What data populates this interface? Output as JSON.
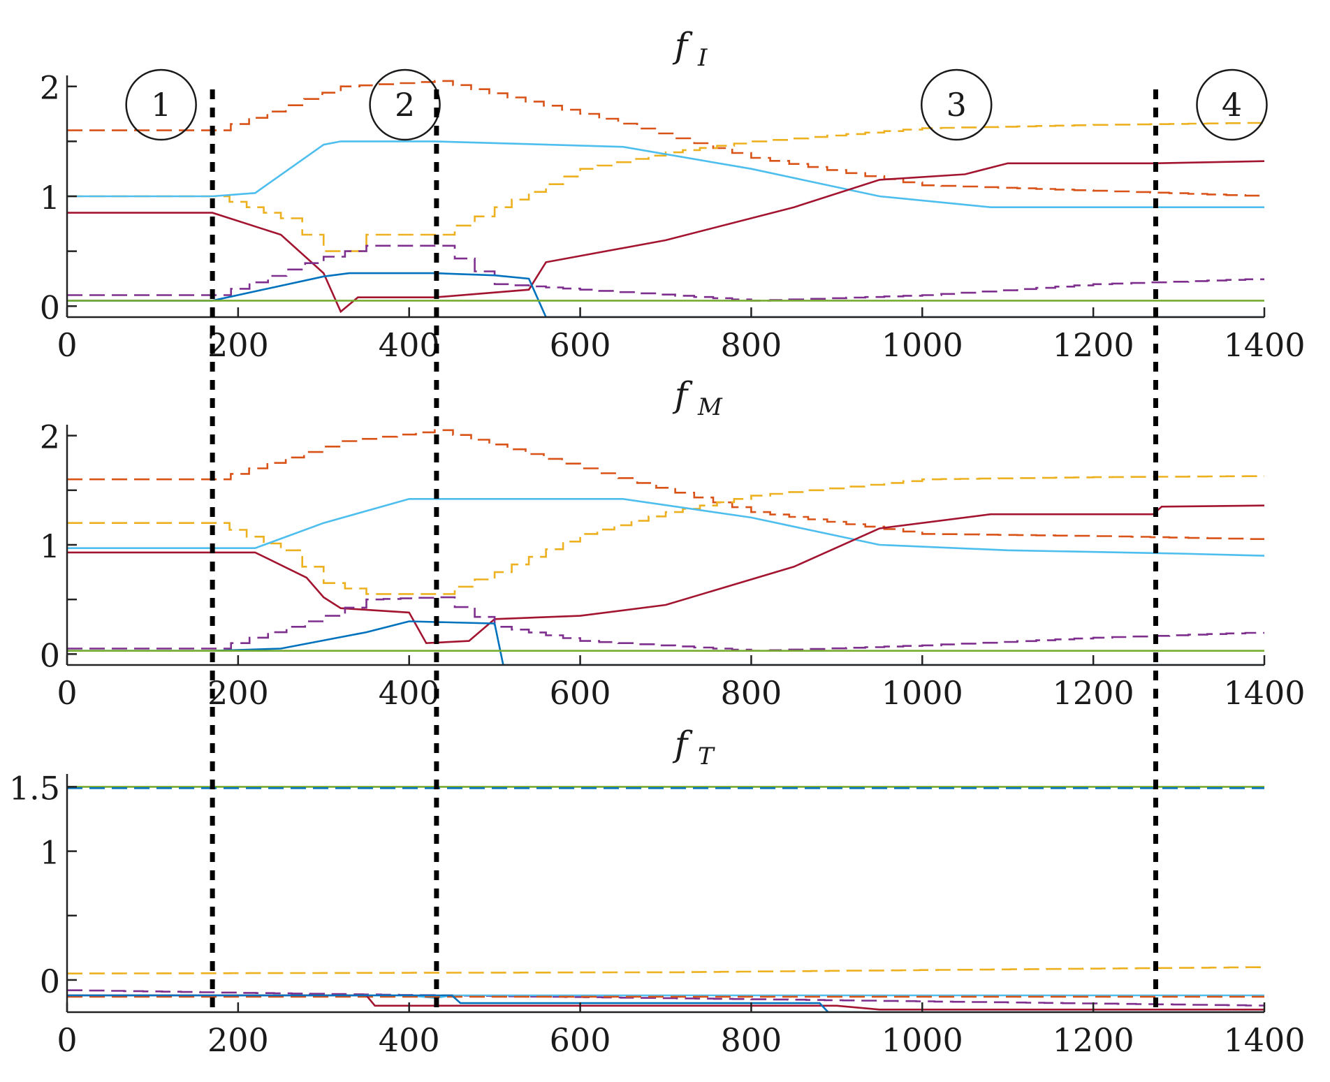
{
  "colors": {
    "blue": "#0072BD",
    "orange": "#D95319",
    "yellow": "#EDB120",
    "purple": "#7E2F8E",
    "green": "#77AC30",
    "cyan": "#4DBEEE",
    "maroon": "#A2142F",
    "axis": "#222222",
    "divider": "#000000"
  },
  "regions": {
    "labels": [
      "1",
      "2",
      "3",
      "4"
    ],
    "label_x": [
      110,
      395,
      1040,
      1362
    ],
    "dividers_x": [
      170,
      432,
      1273
    ]
  },
  "chart_data": [
    {
      "type": "line",
      "title": "f",
      "subscript": "I",
      "xlabel": "",
      "ylabel": "",
      "xlim": [
        0,
        1400
      ],
      "ylim": [
        -0.1,
        2.1
      ],
      "xticks": [
        0,
        200,
        400,
        600,
        800,
        1000,
        1200,
        1400
      ],
      "yticks_labeled": [
        0,
        1,
        2
      ],
      "yticks_minor": [
        0.5,
        1.5
      ],
      "region_labels_shown": true,
      "series": [
        {
          "name": "series-orange-dashed",
          "color": "orange",
          "dashed": true,
          "stepped": true,
          "x": [
            0,
            170,
            320,
            430,
            600,
            800,
            1000,
            1200,
            1400
          ],
          "y": [
            1.6,
            1.6,
            2.0,
            2.05,
            1.75,
            1.35,
            1.1,
            1.05,
            1.0
          ]
        },
        {
          "name": "series-yellow-dashed",
          "color": "yellow",
          "dashed": true,
          "stepped": true,
          "x": [
            0,
            170,
            250,
            300,
            330,
            350,
            430,
            500,
            600,
            700,
            800,
            1000,
            1200,
            1400
          ],
          "y": [
            1.0,
            1.0,
            0.8,
            0.5,
            0.5,
            0.65,
            0.65,
            0.9,
            1.25,
            1.4,
            1.5,
            1.62,
            1.65,
            1.67
          ]
        },
        {
          "name": "series-cyan",
          "color": "cyan",
          "dashed": false,
          "stepped": false,
          "x": [
            0,
            170,
            220,
            300,
            320,
            430,
            650,
            800,
            950,
            1080,
            1200,
            1400
          ],
          "y": [
            1.0,
            1.0,
            1.03,
            1.47,
            1.5,
            1.5,
            1.45,
            1.25,
            1.0,
            0.9,
            0.9,
            0.9
          ]
        },
        {
          "name": "series-maroon",
          "color": "maroon",
          "dashed": false,
          "stepped": false,
          "x": [
            0,
            170,
            250,
            300,
            320,
            340,
            430,
            540,
            560,
            700,
            850,
            950,
            1050,
            1100,
            1270,
            1400
          ],
          "y": [
            0.85,
            0.85,
            0.65,
            0.3,
            -0.05,
            0.08,
            0.08,
            0.15,
            0.4,
            0.6,
            0.9,
            1.15,
            1.2,
            1.3,
            1.3,
            1.32
          ]
        },
        {
          "name": "series-purple-dashed",
          "color": "purple",
          "dashed": true,
          "stepped": true,
          "x": [
            0,
            170,
            300,
            350,
            430,
            500,
            600,
            800,
            1000,
            1200,
            1400
          ],
          "y": [
            0.1,
            0.1,
            0.45,
            0.55,
            0.55,
            0.2,
            0.15,
            0.05,
            0.1,
            0.2,
            0.25
          ]
        },
        {
          "name": "series-blue",
          "color": "blue",
          "dashed": false,
          "stepped": false,
          "x": [
            0,
            170,
            300,
            330,
            430,
            500,
            540,
            560,
            700,
            1400
          ],
          "y": [
            0.05,
            0.05,
            0.27,
            0.3,
            0.3,
            0.28,
            0.25,
            -0.1,
            -0.1,
            -0.1
          ]
        },
        {
          "name": "series-green",
          "color": "green",
          "dashed": false,
          "stepped": false,
          "x": [
            0,
            1400
          ],
          "y": [
            0.05,
            0.05
          ]
        }
      ]
    },
    {
      "type": "line",
      "title": "f",
      "subscript": "M",
      "xlabel": "",
      "ylabel": "",
      "xlim": [
        0,
        1400
      ],
      "ylim": [
        -0.1,
        2.1
      ],
      "xticks": [
        0,
        200,
        400,
        600,
        800,
        1000,
        1200,
        1400
      ],
      "yticks_labeled": [
        0,
        1,
        2
      ],
      "yticks_minor": [
        0.5,
        1.5
      ],
      "region_labels_shown": false,
      "series": [
        {
          "name": "series-orange-dashed",
          "color": "orange",
          "dashed": true,
          "stepped": true,
          "x": [
            0,
            170,
            320,
            430,
            600,
            800,
            1000,
            1200,
            1400
          ],
          "y": [
            1.6,
            1.6,
            1.95,
            2.05,
            1.7,
            1.3,
            1.1,
            1.08,
            1.05
          ]
        },
        {
          "name": "series-yellow-dashed",
          "color": "yellow",
          "dashed": true,
          "stepped": true,
          "x": [
            0,
            170,
            250,
            300,
            350,
            430,
            500,
            600,
            700,
            800,
            1000,
            1200,
            1400
          ],
          "y": [
            1.2,
            1.2,
            0.95,
            0.65,
            0.55,
            0.55,
            0.75,
            1.1,
            1.3,
            1.45,
            1.6,
            1.62,
            1.63
          ]
        },
        {
          "name": "series-cyan",
          "color": "cyan",
          "dashed": false,
          "stepped": false,
          "x": [
            0,
            170,
            220,
            300,
            400,
            650,
            800,
            950,
            1100,
            1300,
            1400
          ],
          "y": [
            0.97,
            0.97,
            0.97,
            1.2,
            1.42,
            1.42,
            1.25,
            1.0,
            0.95,
            0.92,
            0.9
          ]
        },
        {
          "name": "series-maroon",
          "color": "maroon",
          "dashed": false,
          "stepped": false,
          "x": [
            0,
            170,
            220,
            280,
            300,
            320,
            400,
            420,
            470,
            500,
            600,
            700,
            850,
            950,
            1080,
            1270,
            1280,
            1400
          ],
          "y": [
            0.93,
            0.93,
            0.93,
            0.7,
            0.52,
            0.42,
            0.38,
            0.1,
            0.12,
            0.32,
            0.35,
            0.45,
            0.8,
            1.15,
            1.28,
            1.28,
            1.35,
            1.36
          ]
        },
        {
          "name": "series-purple-dashed",
          "color": "purple",
          "dashed": true,
          "stepped": true,
          "x": [
            0,
            170,
            300,
            350,
            430,
            500,
            600,
            800,
            1000,
            1200,
            1400
          ],
          "y": [
            0.05,
            0.05,
            0.35,
            0.5,
            0.52,
            0.25,
            0.12,
            0.03,
            0.08,
            0.15,
            0.2
          ]
        },
        {
          "name": "series-blue",
          "color": "blue",
          "dashed": false,
          "stepped": false,
          "x": [
            0,
            170,
            250,
            350,
            400,
            500,
            510,
            600,
            1400
          ],
          "y": [
            0.03,
            0.03,
            0.05,
            0.2,
            0.3,
            0.28,
            -0.1,
            -0.1,
            -0.1
          ]
        },
        {
          "name": "series-green",
          "color": "green",
          "dashed": false,
          "stepped": false,
          "x": [
            0,
            1400
          ],
          "y": [
            0.03,
            0.03
          ]
        }
      ]
    },
    {
      "type": "line",
      "title": "f",
      "subscript": "T",
      "xlabel": "",
      "ylabel": "",
      "xlim": [
        0,
        1400
      ],
      "ylim": [
        -0.25,
        1.6
      ],
      "xticks": [
        0,
        200,
        400,
        600,
        800,
        1000,
        1200,
        1400
      ],
      "yticks_labeled": [
        0,
        1,
        1.5
      ],
      "ytick_labels": [
        "0",
        "1",
        "1.5"
      ],
      "yticks_minor": [
        0.5
      ],
      "region_labels_shown": false,
      "series": [
        {
          "name": "series-green",
          "color": "green",
          "dashed": false,
          "stepped": false,
          "x": [
            0,
            1400
          ],
          "y": [
            1.5,
            1.5
          ]
        },
        {
          "name": "series-blue-dashed",
          "color": "blue",
          "dashed": true,
          "stepped": false,
          "x": [
            0,
            1400
          ],
          "y": [
            1.49,
            1.49
          ]
        },
        {
          "name": "series-yellow-dashed",
          "color": "yellow",
          "dashed": true,
          "stepped": true,
          "x": [
            0,
            700,
            1400
          ],
          "y": [
            0.05,
            0.06,
            0.1
          ]
        },
        {
          "name": "series-purple-dashed",
          "color": "purple",
          "dashed": true,
          "stepped": true,
          "x": [
            0,
            200,
            430,
            800,
            1400
          ],
          "y": [
            -0.08,
            -0.1,
            -0.12,
            -0.15,
            -0.2
          ]
        },
        {
          "name": "series-cyan",
          "color": "cyan",
          "dashed": false,
          "stepped": false,
          "x": [
            0,
            400,
            430,
            450,
            1400
          ],
          "y": [
            -0.12,
            -0.12,
            -0.14,
            -0.12,
            -0.12
          ]
        },
        {
          "name": "series-orange-dashed",
          "color": "orange",
          "dashed": true,
          "stepped": false,
          "x": [
            0,
            1400
          ],
          "y": [
            -0.13,
            -0.13
          ]
        },
        {
          "name": "series-maroon",
          "color": "maroon",
          "dashed": false,
          "stepped": false,
          "x": [
            0,
            350,
            360,
            900,
            950,
            1400
          ],
          "y": [
            -0.12,
            -0.12,
            -0.2,
            -0.2,
            -0.23,
            -0.23
          ]
        },
        {
          "name": "series-blue",
          "color": "blue",
          "dashed": false,
          "stepped": false,
          "x": [
            0,
            450,
            460,
            880,
            890,
            1400
          ],
          "y": [
            -0.12,
            -0.12,
            -0.18,
            -0.18,
            -0.25,
            -0.25
          ]
        }
      ]
    }
  ]
}
